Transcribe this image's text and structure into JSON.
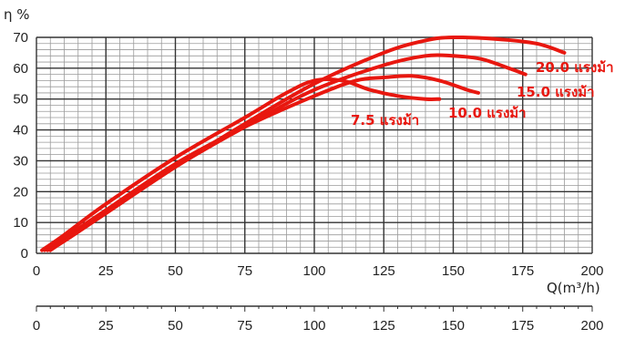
{
  "chart_data": {
    "type": "line",
    "ylabel": "η %",
    "xlabel": "Q(m³/h)",
    "xlim": [
      0,
      200
    ],
    "ylim": [
      0,
      70
    ],
    "x_ticks": [
      "0",
      "25",
      "50",
      "75",
      "100",
      "125",
      "150",
      "175",
      "200"
    ],
    "y_ticks": [
      "0",
      "10",
      "20",
      "30",
      "40",
      "50",
      "60",
      "70"
    ],
    "grid": true,
    "line_color": "#e8170f",
    "grid_major_color": "#333333",
    "grid_minor_color": "#9a9a9a",
    "series": [
      {
        "name": "7.5 แรงม้า",
        "x": [
          2,
          10,
          25,
          50,
          75,
          90,
          100,
          110,
          120,
          130,
          140,
          145
        ],
        "y": [
          1,
          6,
          16,
          31,
          44,
          52,
          56,
          56,
          53,
          51,
          50,
          50
        ]
      },
      {
        "name": "10.0 แรงม้า",
        "x": [
          3,
          10,
          25,
          50,
          75,
          100,
          115,
          125,
          135,
          145,
          155,
          159
        ],
        "y": [
          1,
          5,
          14,
          29,
          41,
          51,
          56,
          57,
          57.5,
          56,
          53,
          52
        ]
      },
      {
        "name": "15.0 แรงม้า",
        "x": [
          4,
          10,
          25,
          50,
          75,
          100,
          125,
          140,
          150,
          160,
          170,
          176
        ],
        "y": [
          1,
          4,
          13,
          28,
          41,
          53,
          61,
          64,
          64,
          63,
          60,
          58
        ]
      },
      {
        "name": "20.0 แรงม้า",
        "x": [
          5,
          10,
          25,
          50,
          75,
          100,
          125,
          140,
          150,
          165,
          180,
          190
        ],
        "y": [
          1,
          4,
          13,
          28,
          42,
          55,
          65,
          69,
          70,
          69.5,
          68,
          65
        ]
      }
    ]
  }
}
